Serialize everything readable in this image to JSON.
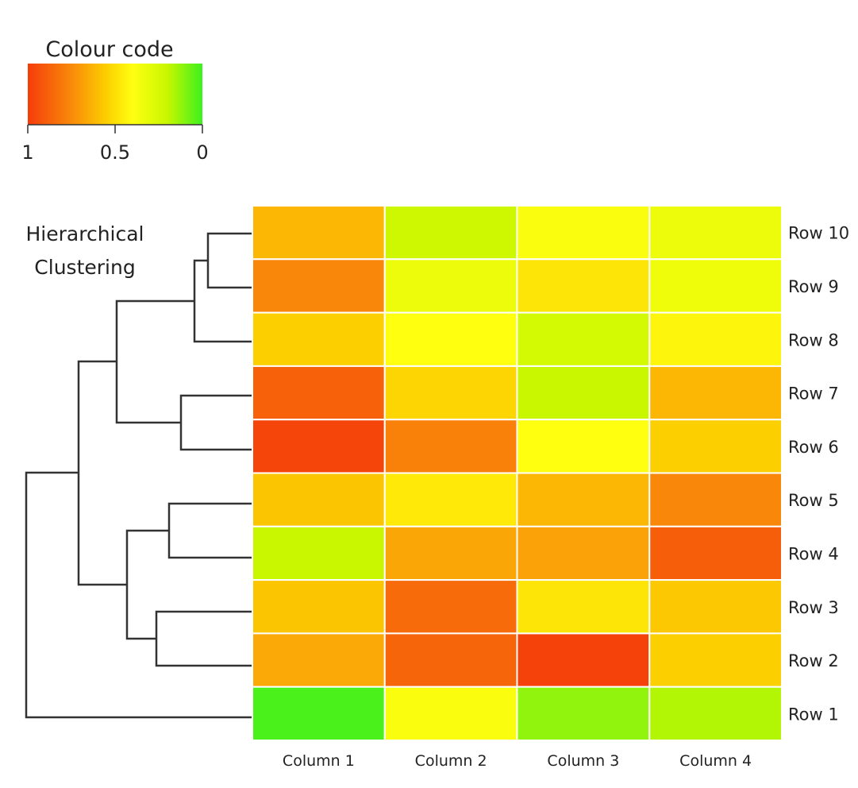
{
  "legend": {
    "title": "Colour code",
    "ticks": [
      "1",
      "0.5",
      "0"
    ],
    "tick_values": [
      1,
      0.5,
      0
    ],
    "stops": [
      {
        "value": 1,
        "color": "#f53c0a"
      },
      {
        "value": 0.75,
        "color": "#f98a0a"
      },
      {
        "value": 0.55,
        "color": "#fccf00"
      },
      {
        "value": 0.4,
        "color": "#ffff10"
      },
      {
        "value": 0.2,
        "color": "#c8f700"
      },
      {
        "value": 0,
        "color": "#3df01e"
      }
    ]
  },
  "dendrogram": {
    "title_line1": "Hierarchical",
    "title_line2": "Clustering"
  },
  "chart_data": {
    "type": "heatmap",
    "title": "",
    "columns": [
      "Column 1",
      "Column 2",
      "Column 3",
      "Column 4"
    ],
    "rows": [
      "Row 10",
      "Row 9",
      "Row 8",
      "Row 7",
      "Row 6",
      "Row 5",
      "Row 4",
      "Row 3",
      "Row 2",
      "Row 1"
    ],
    "value_range": [
      0,
      1
    ],
    "values": [
      [
        0.62,
        0.22,
        0.38,
        0.33
      ],
      [
        0.76,
        0.33,
        0.48,
        0.34
      ],
      [
        0.55,
        0.4,
        0.24,
        0.43
      ],
      [
        0.88,
        0.53,
        0.2,
        0.62
      ],
      [
        0.97,
        0.78,
        0.4,
        0.55
      ],
      [
        0.58,
        0.47,
        0.62,
        0.76
      ],
      [
        0.2,
        0.67,
        0.68,
        0.89
      ],
      [
        0.58,
        0.85,
        0.48,
        0.57
      ],
      [
        0.66,
        0.87,
        0.98,
        0.55
      ],
      [
        0.02,
        0.38,
        0.12,
        0.17
      ]
    ]
  }
}
